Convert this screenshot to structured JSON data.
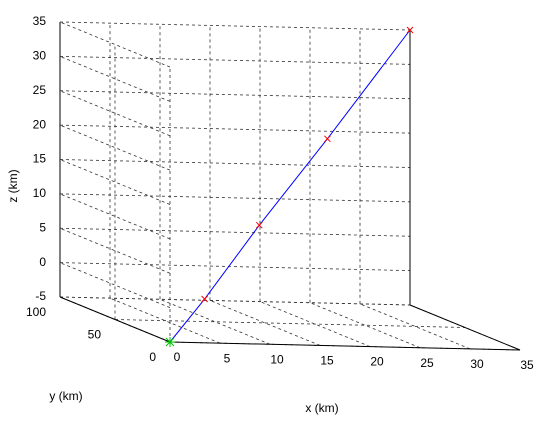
{
  "chart_data": {
    "type": "line3d",
    "x_label": "x (km)",
    "y_label": "y (km)",
    "z_label": "z (km)",
    "x": [
      0,
      5,
      13,
      23,
      35
    ],
    "y": [
      0,
      14,
      37,
      66,
      100
    ],
    "z": [
      -5,
      0.5,
      10,
      21,
      35
    ],
    "color": "#0000ff",
    "marker_color": "#ff0000",
    "start_color": "#00c000",
    "xlim": [
      0,
      35
    ],
    "xticks": [
      0,
      5,
      10,
      15,
      20,
      25,
      30,
      35
    ],
    "ylim": [
      0,
      100
    ],
    "yticks": [
      0,
      50,
      100
    ],
    "zlim": [
      -5,
      35
    ],
    "zticks": [
      -5,
      0,
      5,
      10,
      15,
      20,
      25,
      30,
      35
    ],
    "grid": true
  }
}
